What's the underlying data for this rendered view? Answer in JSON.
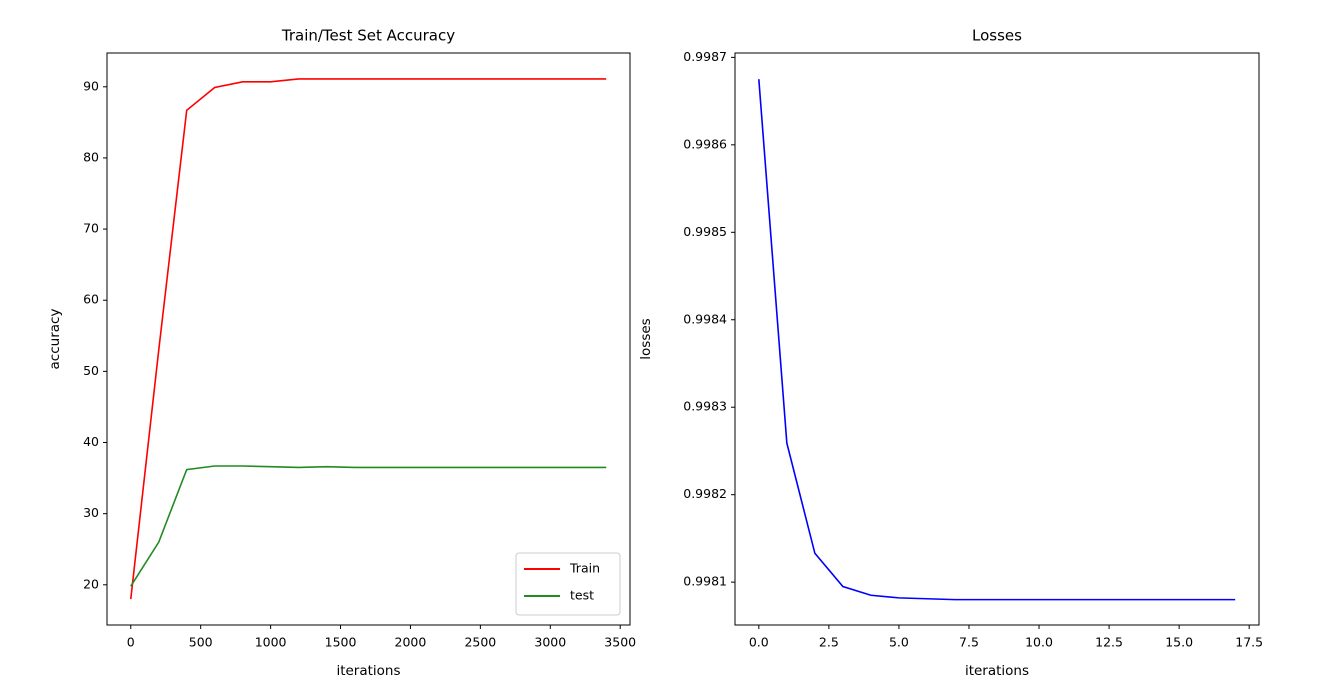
{
  "chart_data": [
    {
      "type": "line",
      "title": "Train/Test Set Accuracy",
      "xlabel": "iterations",
      "ylabel": "accuracy",
      "x": [
        0,
        200,
        400,
        600,
        800,
        1000,
        1200,
        1400,
        1600,
        1800,
        2000,
        2200,
        2400,
        2600,
        2800,
        3000,
        3200,
        3400
      ],
      "series": [
        {
          "name": "Train",
          "color": "#ff0000",
          "values": [
            18,
            53,
            86.7,
            89.9,
            90.7,
            90.7,
            91.1,
            91.1,
            91.1,
            91.1,
            91.1,
            91.1,
            91.1,
            91.1,
            91.1,
            91.1,
            91.1,
            91.1
          ]
        },
        {
          "name": "test",
          "color": "#228b22",
          "values": [
            19.8,
            26,
            36.2,
            36.7,
            36.7,
            36.6,
            36.5,
            36.6,
            36.5,
            36.5,
            36.5,
            36.5,
            36.5,
            36.5,
            36.5,
            36.5,
            36.5,
            36.5
          ]
        }
      ],
      "xlim": [
        -170,
        3570
      ],
      "xticks": [
        0,
        500,
        1000,
        1500,
        2000,
        2500,
        3000,
        3500
      ],
      "ylim": [
        14.35,
        94.75
      ],
      "yticks": [
        20,
        30,
        40,
        50,
        60,
        70,
        80,
        90
      ],
      "legend": "lower right"
    },
    {
      "type": "line",
      "title": "Losses",
      "xlabel": "iterations",
      "ylabel": "losses",
      "x": [
        0,
        1,
        2,
        3,
        4,
        5,
        6,
        7,
        8,
        9,
        10,
        11,
        12,
        13,
        14,
        15,
        16,
        17
      ],
      "color": "#0000ff",
      "values": [
        0.998675,
        0.998259,
        0.998133,
        0.998095,
        0.998085,
        0.998082,
        0.998081,
        0.99808,
        0.99808,
        0.99808,
        0.99808,
        0.99808,
        0.99808,
        0.99808,
        0.99808,
        0.99808,
        0.99808,
        0.99808
      ],
      "xlim": [
        -0.85,
        17.85
      ],
      "xticks": [
        {
          "value": 0,
          "label": "0.0"
        },
        2.5,
        {
          "value": 5,
          "label": "5.0"
        },
        7.5,
        {
          "value": 10,
          "label": "10.0"
        },
        12.5,
        {
          "value": 15,
          "label": "15.0"
        },
        17.5
      ],
      "ylim": [
        0.998051,
        0.998705
      ],
      "yticks": [
        0.9981,
        0.9982,
        0.9983,
        0.9984,
        0.9985,
        0.9986,
        0.9987
      ]
    }
  ]
}
